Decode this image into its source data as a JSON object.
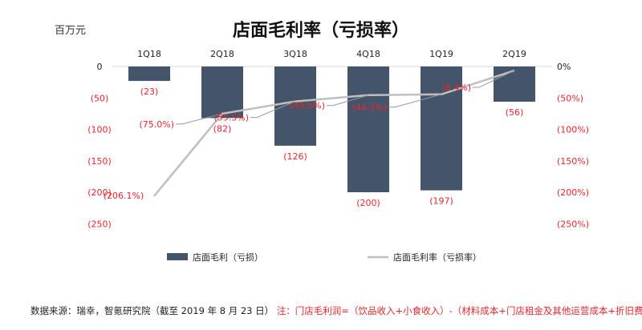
{
  "chart_data": {
    "type": "bar",
    "title": "店面毛利率（亏损率）",
    "unit_label": "百万元",
    "categories": [
      "1Q18",
      "2Q18",
      "3Q18",
      "4Q18",
      "1Q19",
      "2Q19"
    ],
    "series": [
      {
        "name": "店面毛利（亏损）",
        "type": "bar",
        "axis": "left",
        "values": [
          -23,
          -82,
          -126,
          -200,
          -197,
          -56
        ],
        "labels": [
          "(23)",
          "(82)",
          "(126)",
          "(200)",
          "(197)",
          "(56)"
        ],
        "color": "#44546a"
      },
      {
        "name": "店面毛利率（亏损率）",
        "type": "line",
        "axis": "right",
        "values": [
          -206.1,
          -75.0,
          -55.5,
          -45.5,
          -44.3,
          -6.4
        ],
        "labels": [
          "(206.1%)",
          "(75.0%)",
          "(55.5%)",
          "(45.5%)",
          "(44.3%)",
          "(6.4%)"
        ],
        "color": "#bfbfbf"
      }
    ],
    "left_axis": {
      "ylim": [
        -250,
        0
      ],
      "ticks": [
        "0",
        "(50)",
        "(100)",
        "(150)",
        "(200)",
        "(250)"
      ]
    },
    "right_axis": {
      "ylim": [
        -250,
        0
      ],
      "ticks": [
        "0%",
        "(50%)",
        "(100%)",
        "(150%)",
        "(200%)",
        "(250%)"
      ]
    },
    "tick_label_color": "#e8262b",
    "data_label_color": "#e8262b",
    "legend_position": "bottom",
    "grid": false
  },
  "footer": {
    "source": "数据来源：瑞幸，智氪研究院（截至 2019 年 8 月 23 日）",
    "note": "注：门店毛利润=（饮品收入+小食收入）-（材料成本+门店租金及其他运营成本+折旧费）"
  }
}
